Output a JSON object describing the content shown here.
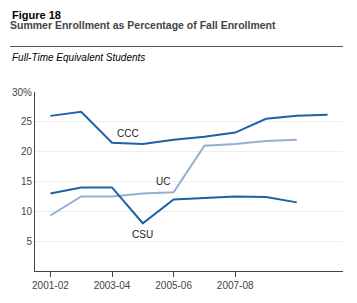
{
  "chart_data": {
    "type": "line",
    "annotations": [
      "Figure 18"
    ],
    "title": "Summer Enrollment as Percentage of Fall Enrollment",
    "subtitle": "Full-Time Equivalent Students",
    "categories": [
      "2001-02",
      null,
      "2003-04",
      null,
      "2005-06",
      null,
      "2007-08",
      null,
      null,
      null
    ],
    "series": [
      {
        "name": "CCC",
        "color": "#2060a8",
        "values": [
          26.0,
          26.7,
          21.5,
          21.3,
          22.0,
          22.5,
          23.2,
          25.5,
          26.0,
          26.2
        ]
      },
      {
        "name": "UC",
        "color": "#94afd0",
        "values": [
          9.3,
          12.5,
          12.5,
          13.0,
          13.2,
          21.0,
          21.3,
          21.8,
          22.0,
          null
        ]
      },
      {
        "name": "CSU",
        "color": "#2060a8",
        "values": [
          13.0,
          14.0,
          14.0,
          8.0,
          12.0,
          12.3,
          12.5,
          12.4,
          11.5,
          null
        ]
      }
    ],
    "ylim": [
      0,
      30
    ],
    "yticks": [
      5,
      10,
      15,
      20,
      25,
      {
        "value": 30,
        "label": "30%"
      }
    ],
    "grid": true,
    "legend": false
  }
}
